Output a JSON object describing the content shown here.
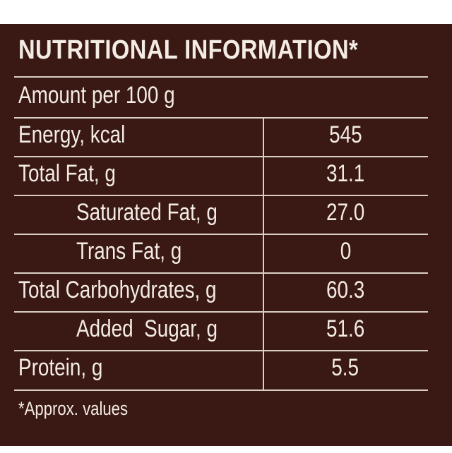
{
  "panel": {
    "title": "NUTRITIONAL INFORMATION*",
    "amount_label": "Amount per 100 g",
    "rows": [
      {
        "label": "Energy, kcal",
        "value": "545"
      },
      {
        "label": "Total Fat, g",
        "value": "31.1"
      },
      {
        "label": "Saturated Fat, g",
        "value": "27.0"
      },
      {
        "label": "Trans Fat, g",
        "value": "0"
      },
      {
        "label": "Total Carbohydrates, g",
        "value": "60.3"
      },
      {
        "label": "Added  Sugar, g",
        "value": "51.6"
      },
      {
        "label": "Protein, g",
        "value": "5.5"
      }
    ],
    "footnote": "*Approx. values"
  },
  "colors": {
    "background": "#3a1814",
    "text": "#f3ece4",
    "rule": "#d9cfc5"
  }
}
